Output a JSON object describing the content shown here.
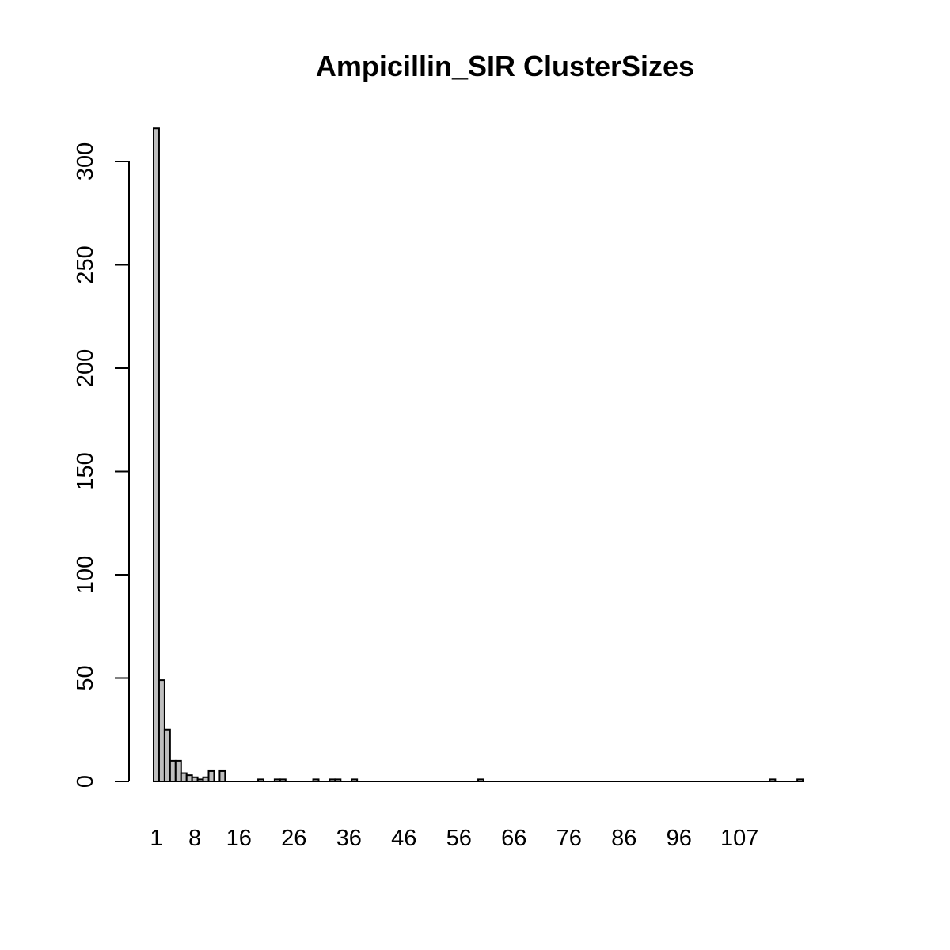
{
  "chart_data": {
    "type": "bar",
    "title": "Ampicillin_SIR ClusterSizes",
    "xlabel": "",
    "ylabel": "",
    "ylim": [
      0,
      316
    ],
    "y_ticks": [
      0,
      50,
      100,
      150,
      200,
      250,
      300
    ],
    "x_tick_labels": [
      "1",
      "8",
      "16",
      "26",
      "36",
      "46",
      "56",
      "66",
      "76",
      "86",
      "96",
      "107"
    ],
    "categories": [
      1,
      2,
      3,
      4,
      5,
      6,
      7,
      8,
      9,
      10,
      11,
      13,
      20,
      23,
      24,
      30,
      33,
      34,
      37,
      60,
      113,
      118
    ],
    "values": [
      316,
      49,
      25,
      10,
      10,
      4,
      3,
      2,
      1,
      2,
      5,
      5,
      1,
      1,
      1,
      1,
      1,
      1,
      1,
      1,
      1,
      1
    ],
    "x_range": [
      1,
      118
    ],
    "bar_color": "#bebebe",
    "grid": false,
    "legend": "none"
  }
}
